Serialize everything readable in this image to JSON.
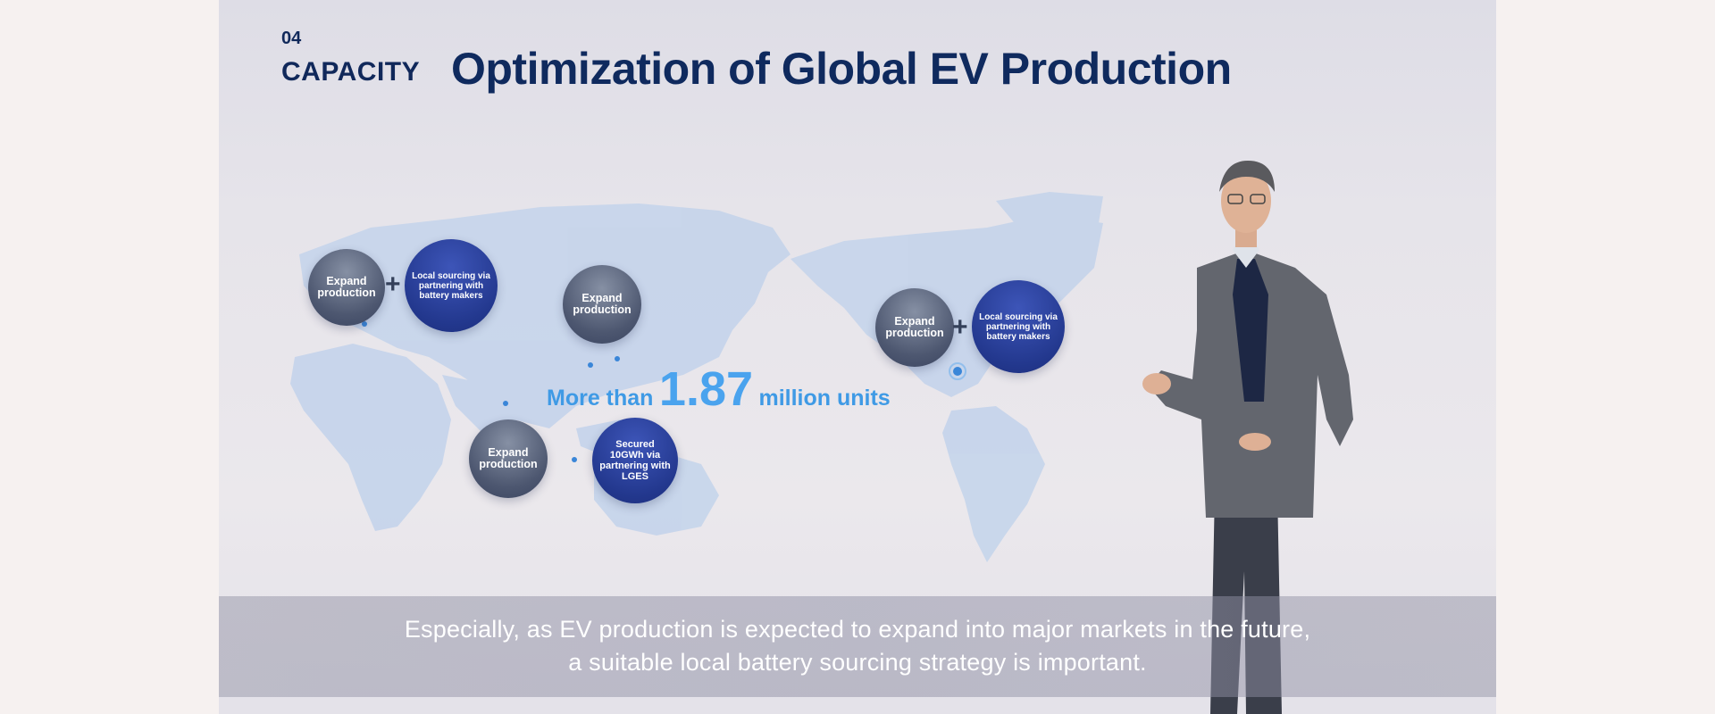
{
  "slide": {
    "section_number": "04",
    "section_label": "CAPACITY",
    "headline": "Optimization of Global EV Production"
  },
  "regions": {
    "europe": {
      "expand": "Expand production",
      "sourcing": "Local sourcing via partnering with battery makers"
    },
    "east_asia": {
      "expand": "Expand production"
    },
    "southeast_asia": {
      "expand": "Expand production",
      "sourcing": "Secured 10GWh via partnering with LGES"
    },
    "north_america": {
      "expand": "Expand production",
      "sourcing": "Local sourcing via partnering with battery makers"
    }
  },
  "units": {
    "prefix": "More than",
    "value": "1.87",
    "suffix": "million units"
  },
  "caption": {
    "line1": "Especially, as EV production is expected to expand into major markets in the future,",
    "line2": "a suitable local battery sourcing strategy is important."
  },
  "colors": {
    "navy": "#0f2a5e",
    "accent_blue": "#3f9ae5",
    "bubble_blue": "#23388e",
    "bubble_gray": "#4d5770"
  }
}
